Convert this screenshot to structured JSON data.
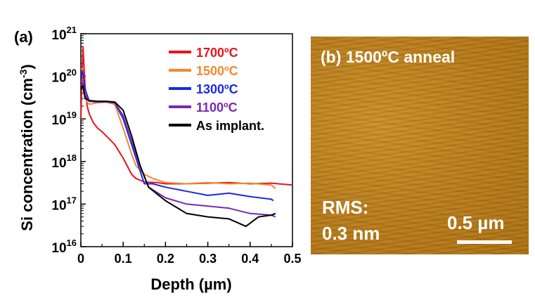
{
  "panel_a_label": "(a)",
  "chart_data": {
    "type": "line",
    "xlabel": "Depth (µm)",
    "ylabel": "Si concentration (cm",
    "ylabel_sup": "-3",
    "ylabel_close": ")",
    "xlim": [
      0,
      0.5
    ],
    "ylim_log10": [
      16,
      21
    ],
    "log_y": true,
    "x_ticks": [
      "0",
      "0.1",
      "0.2",
      "0.3",
      "0.4",
      "0.5"
    ],
    "y_ticks": [
      {
        "base": "10",
        "exp": "16"
      },
      {
        "base": "10",
        "exp": "17"
      },
      {
        "base": "10",
        "exp": "18"
      },
      {
        "base": "10",
        "exp": "19"
      },
      {
        "base": "10",
        "exp": "20"
      },
      {
        "base": "10",
        "exp": "21"
      }
    ],
    "legend_position": "top-right",
    "series": [
      {
        "name": "1700ºC",
        "color": "#e8141c",
        "x": [
          0.0,
          0.005,
          0.01,
          0.015,
          0.02,
          0.03,
          0.04,
          0.05,
          0.06,
          0.08,
          0.1,
          0.12,
          0.13,
          0.15,
          0.18,
          0.2,
          0.25,
          0.3,
          0.35,
          0.4,
          0.45,
          0.5
        ],
        "y": [
          1e+19,
          5e+20,
          6e+19,
          2e+19,
          1.3e+19,
          8e+18,
          6e+18,
          5e+18,
          4e+18,
          2.5e+18,
          1.2e+18,
          5e+17,
          4e+17,
          3.3e+17,
          3.2e+17,
          3e+17,
          3e+17,
          3.1e+17,
          3.2e+17,
          3e+17,
          3.1e+17,
          2.8e+17
        ]
      },
      {
        "name": "1500ºC",
        "color": "#f08a2c",
        "x": [
          0.0,
          0.005,
          0.01,
          0.015,
          0.02,
          0.04,
          0.06,
          0.08,
          0.1,
          0.12,
          0.13,
          0.15,
          0.17,
          0.2,
          0.25,
          0.3,
          0.35,
          0.4,
          0.45,
          0.46
        ],
        "y": [
          1.5e+20,
          1.5e+20,
          4e+19,
          2.5e+19,
          2.2e+19,
          2.4e+19,
          2.5e+19,
          2.2e+19,
          6e+18,
          1.5e+18,
          8e+17,
          5e+17,
          4e+17,
          3.2e+17,
          3e+17,
          3.2e+17,
          3e+17,
          3.1e+17,
          2.8e+17,
          2.3e+17
        ]
      },
      {
        "name": "1300ºC",
        "color": "#1c28e8",
        "x": [
          0.0,
          0.005,
          0.01,
          0.02,
          0.04,
          0.06,
          0.08,
          0.1,
          0.12,
          0.14,
          0.15,
          0.17,
          0.2,
          0.25,
          0.3,
          0.35,
          0.4,
          0.45,
          0.455
        ],
        "y": [
          1e+20,
          1.3e+20,
          5e+19,
          2.6e+19,
          2.5e+19,
          2.5e+19,
          2.4e+19,
          1e+19,
          2.5e+18,
          6e+17,
          3e+17,
          3e+17,
          2.5e+17,
          2e+17,
          1.6e+17,
          1.8e+17,
          1.5e+17,
          1.3e+17,
          1.2e+17
        ]
      },
      {
        "name": "1100ºC",
        "color": "#7a2ab0",
        "x": [
          0.0,
          0.005,
          0.01,
          0.02,
          0.04,
          0.06,
          0.08,
          0.1,
          0.12,
          0.14,
          0.16,
          0.2,
          0.25,
          0.3,
          0.35,
          0.4,
          0.45,
          0.46
        ],
        "y": [
          8e+19,
          7e+19,
          3.5e+19,
          2.6e+19,
          2.5e+19,
          2.5e+19,
          2.4e+19,
          1.2e+19,
          3e+18,
          8e+17,
          2.5e+17,
          1.4e+17,
          1e+17,
          9e+16,
          8e+16,
          6e+16,
          5.5e+16,
          5e+16
        ]
      },
      {
        "name": "As implant.",
        "color": "#000000",
        "x": [
          0.0,
          0.005,
          0.01,
          0.02,
          0.04,
          0.06,
          0.08,
          0.1,
          0.12,
          0.14,
          0.16,
          0.2,
          0.25,
          0.3,
          0.35,
          0.39,
          0.42,
          0.45,
          0.46
        ],
        "y": [
          5e+19,
          6e+19,
          3e+19,
          2.7e+19,
          2.6e+19,
          2.6e+19,
          2.5e+19,
          1.6e+19,
          4e+18,
          8e+17,
          2.5e+17,
          1.2e+17,
          6e+16,
          5e+16,
          4.5e+16,
          3e+16,
          5e+16,
          5.5e+16,
          6e+16
        ]
      }
    ]
  },
  "afm_panel": {
    "title": "(b) 1500ºC anneal",
    "rms_label": "RMS:",
    "rms_value": "0.3 nm",
    "scale_label": "0.5 µm"
  }
}
